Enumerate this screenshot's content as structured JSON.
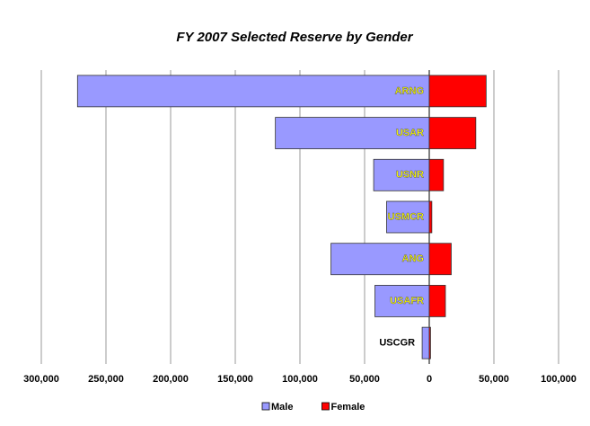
{
  "chart_data": {
    "type": "diverging-bar",
    "title": "FY 2007 Selected Reserve by Gender",
    "categories": [
      "ARNG",
      "USAR",
      "USNR",
      "USMCR",
      "ANG",
      "USAFR",
      "USCGR"
    ],
    "series": [
      {
        "name": "Male",
        "color": "#9999ff",
        "values": [
          -272000,
          -119000,
          -43000,
          -33000,
          -76000,
          -42000,
          -5500
        ]
      },
      {
        "name": "Female",
        "color": "#ff0000",
        "values": [
          44000,
          36000,
          11000,
          2000,
          17000,
          12500,
          1000
        ]
      }
    ],
    "xlim": [
      -300000,
      100000
    ],
    "xticks": [
      {
        "value": -300000,
        "label": "300,000"
      },
      {
        "value": -250000,
        "label": "250,000"
      },
      {
        "value": -200000,
        "label": "200,000"
      },
      {
        "value": -150000,
        "label": "150,000"
      },
      {
        "value": -100000,
        "label": "100,000"
      },
      {
        "value": -50000,
        "label": "50,000"
      },
      0,
      {
        "value": 50000,
        "label": "50,000"
      },
      {
        "value": 100000,
        "label": "100,000"
      }
    ],
    "grid": true,
    "legend": "bottom"
  }
}
